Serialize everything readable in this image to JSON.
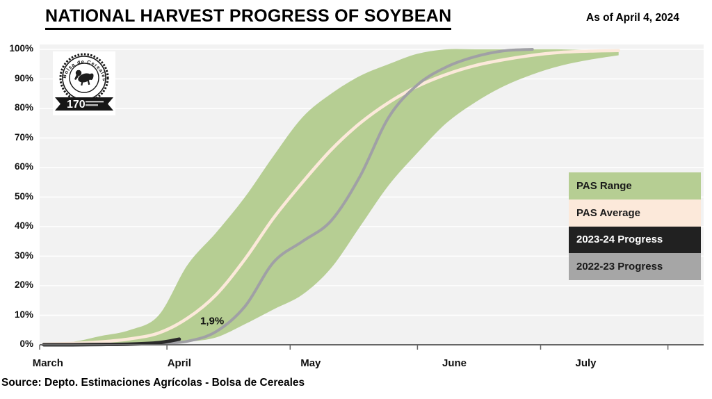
{
  "header": {
    "title": "NATIONAL HARVEST PROGRESS OF SOYBEAN",
    "as_of": "As of April 4, 2024"
  },
  "logo": {
    "organization": "Bolsa de Cereales",
    "anniversary": "170"
  },
  "source": "Source: Depto. Estimaciones Agrícolas - Bolsa de Cereales",
  "legend": {
    "items": [
      {
        "label": "PAS Range",
        "bg": "#b6ce93",
        "fg": "#1a1a1a"
      },
      {
        "label": "PAS Average",
        "bg": "#fce9da",
        "fg": "#1a1a1a"
      },
      {
        "label": "2023-24 Progress",
        "bg": "#212121",
        "fg": "#ffffff"
      },
      {
        "label": "2022-23 Progress",
        "bg": "#a6a6a6",
        "fg": "#1a1a1a"
      }
    ]
  },
  "colors": {
    "pas_range": "#b6ce93",
    "pas_average": "#fce9da",
    "progress_2023_24": "#2b2b2b",
    "progress_2022_23": "#a0a0a5",
    "plot_bg": "#f2f2f2",
    "gridline": "#ffffff",
    "axis": "#666666"
  },
  "chart_data": {
    "type": "area",
    "title": "NATIONAL HARVEST PROGRESS OF SOYBEAN",
    "x_axis": {
      "unit": "days since March 1",
      "range": [
        0,
        162
      ],
      "month_tick_days": [
        0,
        31,
        61,
        92,
        122,
        153
      ],
      "labels": [
        {
          "label": "March",
          "day": 2
        },
        {
          "label": "April",
          "day": 34
        },
        {
          "label": "May",
          "day": 66
        },
        {
          "label": "June",
          "day": 101
        },
        {
          "label": "July",
          "day": 133
        }
      ]
    },
    "y_axis": {
      "min": 0,
      "max": 100,
      "tick_step": 10,
      "format": "percent"
    },
    "series": [
      {
        "name": "PAS Range",
        "kind": "band",
        "upper": [
          [
            1,
            0.5
          ],
          [
            8,
            1
          ],
          [
            15,
            3
          ],
          [
            22,
            5
          ],
          [
            29,
            10
          ],
          [
            36,
            27
          ],
          [
            43,
            38
          ],
          [
            50,
            50
          ],
          [
            57,
            64
          ],
          [
            64,
            77
          ],
          [
            71,
            85
          ],
          [
            78,
            91
          ],
          [
            85,
            95
          ],
          [
            92,
            98.5
          ],
          [
            99,
            100
          ],
          [
            106,
            100
          ],
          [
            113,
            100
          ],
          [
            120,
            100
          ],
          [
            127,
            100
          ],
          [
            134,
            99.8
          ],
          [
            141,
            99.8
          ]
        ],
        "lower": [
          [
            1,
            0
          ],
          [
            8,
            0
          ],
          [
            15,
            0
          ],
          [
            22,
            0
          ],
          [
            29,
            0.2
          ],
          [
            36,
            1
          ],
          [
            43,
            2.5
          ],
          [
            50,
            7
          ],
          [
            57,
            12
          ],
          [
            64,
            17
          ],
          [
            71,
            26
          ],
          [
            78,
            40
          ],
          [
            85,
            54
          ],
          [
            92,
            65
          ],
          [
            99,
            75
          ],
          [
            106,
            82
          ],
          [
            113,
            87.5
          ],
          [
            120,
            91.5
          ],
          [
            127,
            94.5
          ],
          [
            134,
            96.5
          ],
          [
            141,
            98
          ]
        ]
      },
      {
        "name": "PAS Average",
        "kind": "line",
        "points": [
          [
            1,
            0.2
          ],
          [
            8,
            0.5
          ],
          [
            15,
            1
          ],
          [
            22,
            2
          ],
          [
            29,
            4
          ],
          [
            36,
            9
          ],
          [
            43,
            17
          ],
          [
            50,
            29
          ],
          [
            57,
            43
          ],
          [
            64,
            55
          ],
          [
            71,
            66
          ],
          [
            78,
            75
          ],
          [
            85,
            82
          ],
          [
            92,
            87.5
          ],
          [
            99,
            91.5
          ],
          [
            106,
            94.5
          ],
          [
            113,
            96.5
          ],
          [
            120,
            98
          ],
          [
            127,
            99
          ],
          [
            134,
            99.4
          ],
          [
            141,
            99.6
          ]
        ]
      },
      {
        "name": "2022-23 Progress",
        "kind": "line",
        "points": [
          [
            1,
            0.1
          ],
          [
            8,
            0.1
          ],
          [
            15,
            0.2
          ],
          [
            22,
            0.3
          ],
          [
            29,
            0.5
          ],
          [
            36,
            1.2
          ],
          [
            43,
            4.5
          ],
          [
            50,
            13
          ],
          [
            57,
            28
          ],
          [
            64,
            35
          ],
          [
            71,
            42
          ],
          [
            78,
            57
          ],
          [
            85,
            77
          ],
          [
            92,
            88
          ],
          [
            99,
            94
          ],
          [
            106,
            97.5
          ],
          [
            113,
            99.5
          ],
          [
            120,
            100
          ]
        ]
      },
      {
        "name": "2023-24 Progress",
        "kind": "line",
        "points": [
          [
            1,
            0
          ],
          [
            8,
            0
          ],
          [
            15,
            0.1
          ],
          [
            22,
            0.2
          ],
          [
            29,
            0.7
          ],
          [
            34,
            1.9
          ]
        ]
      }
    ],
    "annotation": {
      "label": "1,9%",
      "day": 42,
      "value": 7
    }
  }
}
